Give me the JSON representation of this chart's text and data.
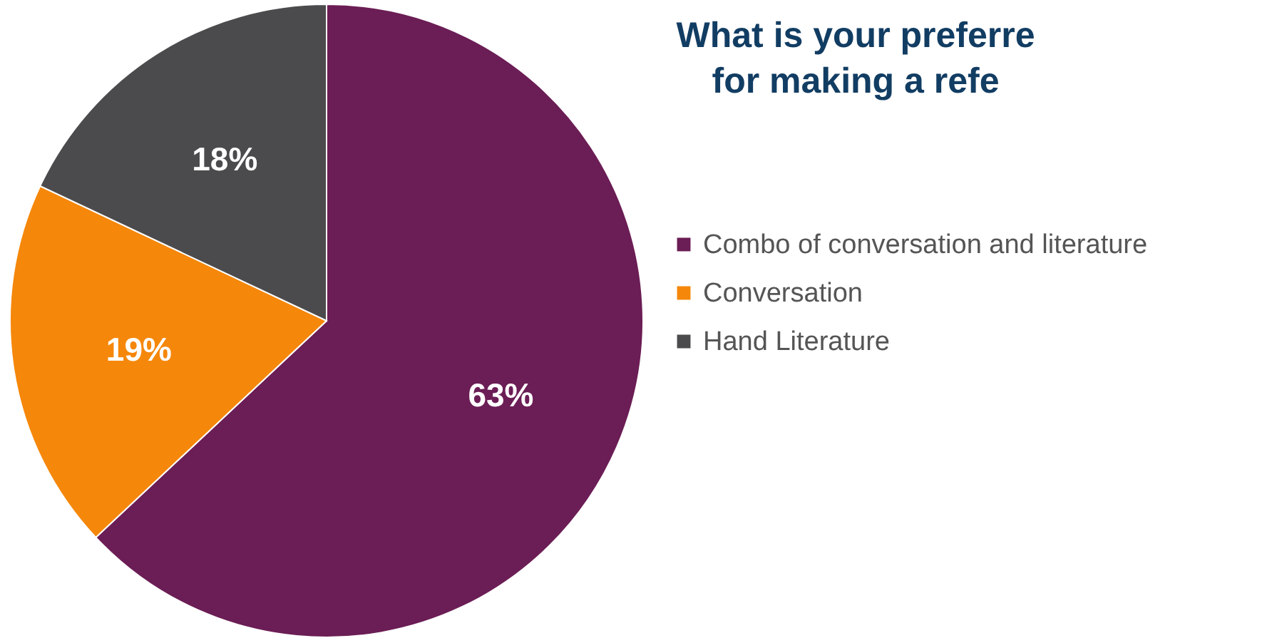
{
  "chart_data": {
    "type": "pie",
    "title": [
      "What is your preferre",
      "for making a refe"
    ],
    "categories": [
      "Combo of conversation and literature",
      "Conversation",
      "Hand Literature"
    ],
    "values": [
      63,
      19,
      18
    ],
    "value_labels": [
      "63%",
      "19%",
      "18%"
    ],
    "colors": [
      "#6b1d55",
      "#f5870a",
      "#4b4b4d"
    ],
    "legend": "right"
  }
}
